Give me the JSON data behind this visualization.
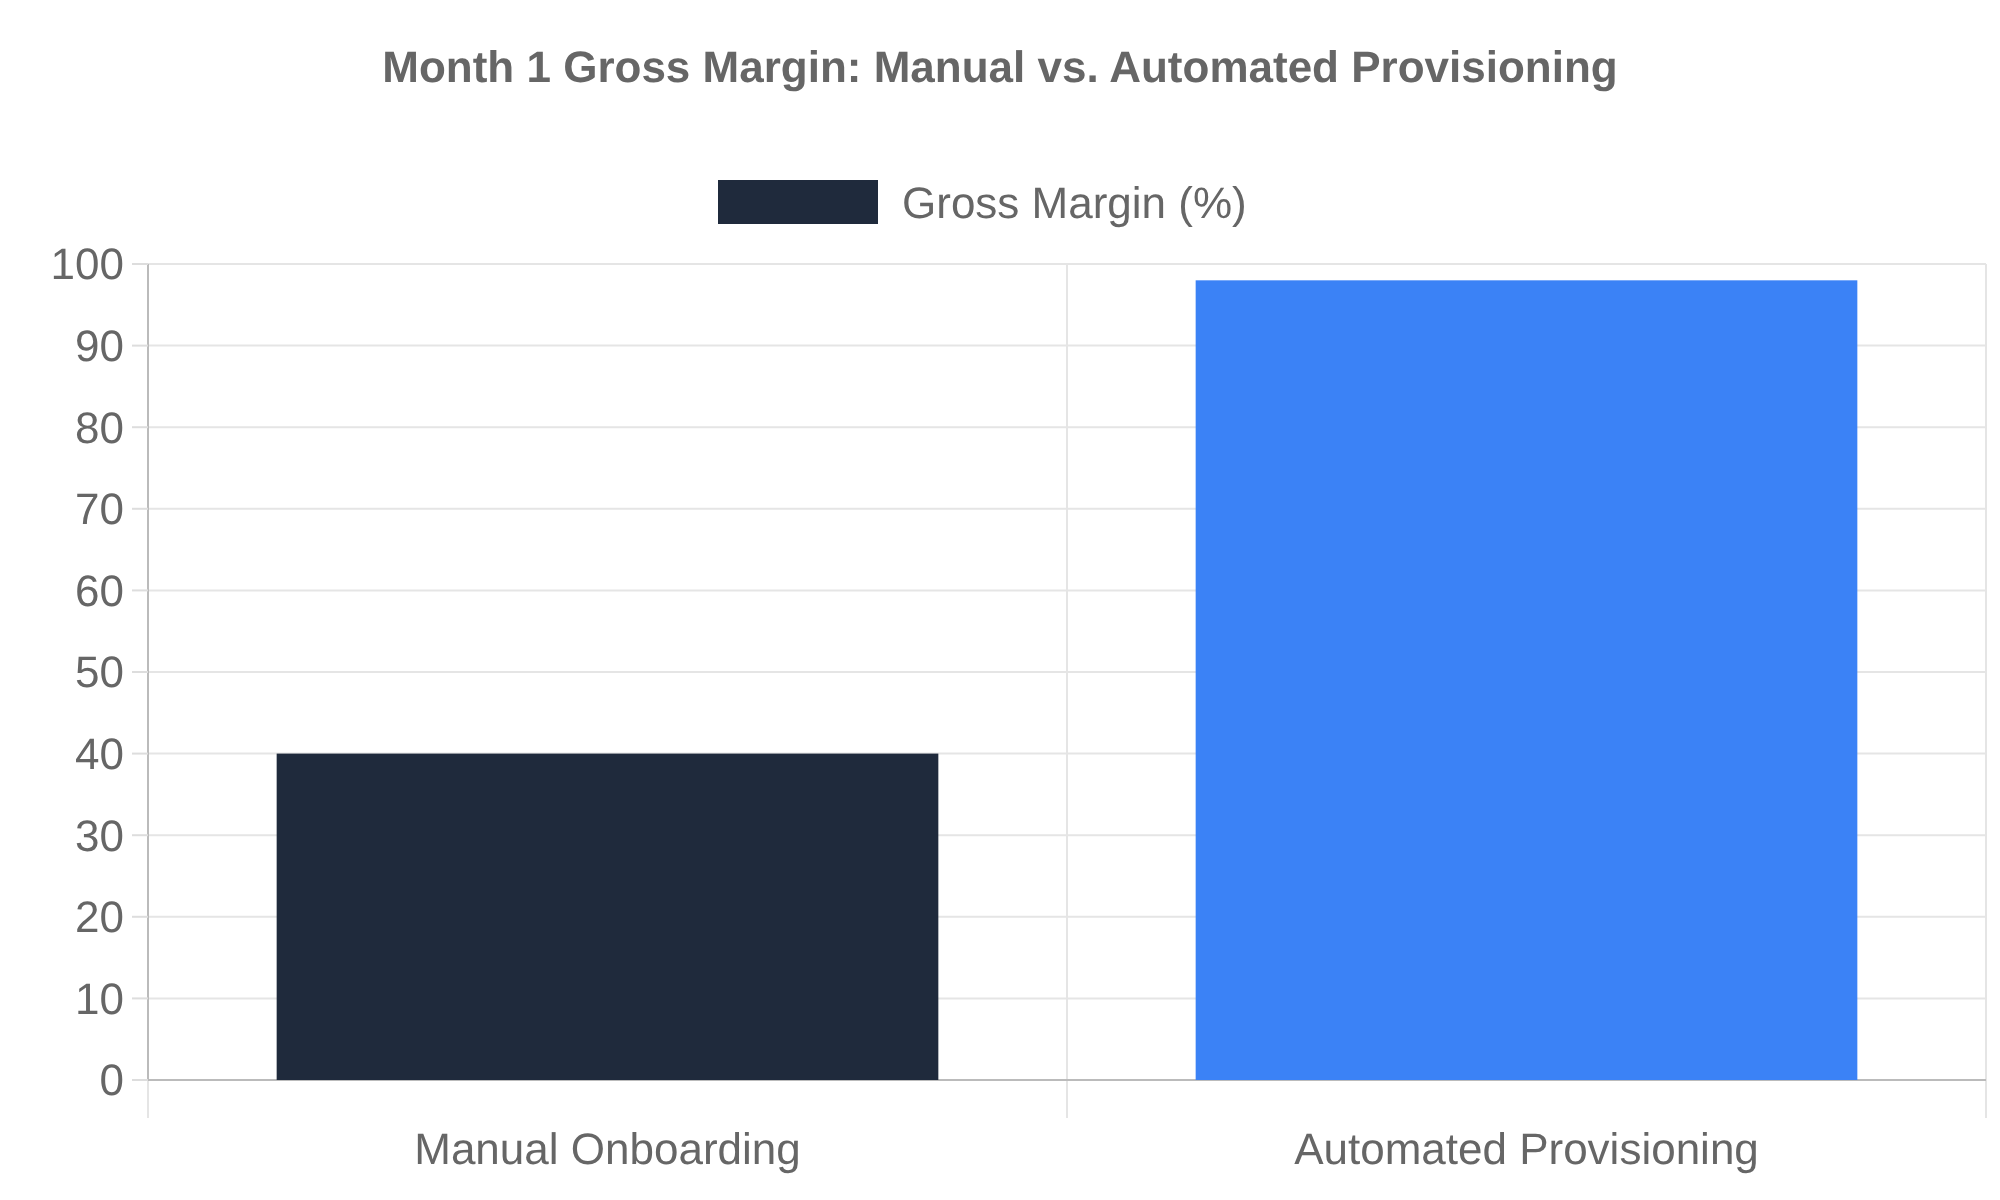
{
  "chart_data": {
    "type": "bar",
    "title": "Month 1 Gross Margin: Manual vs. Automated Provisioning",
    "categories": [
      "Manual Onboarding",
      "Automated Provisioning"
    ],
    "series": [
      {
        "name": "Gross Margin (%)",
        "colors": [
          "#1f2a3c",
          "#3b82f6"
        ],
        "values": [
          40,
          98
        ]
      }
    ],
    "ylim": [
      0,
      100
    ],
    "yticks": [
      0,
      10,
      20,
      30,
      40,
      50,
      60,
      70,
      80,
      90,
      100
    ],
    "grid": true,
    "legend": "top"
  }
}
